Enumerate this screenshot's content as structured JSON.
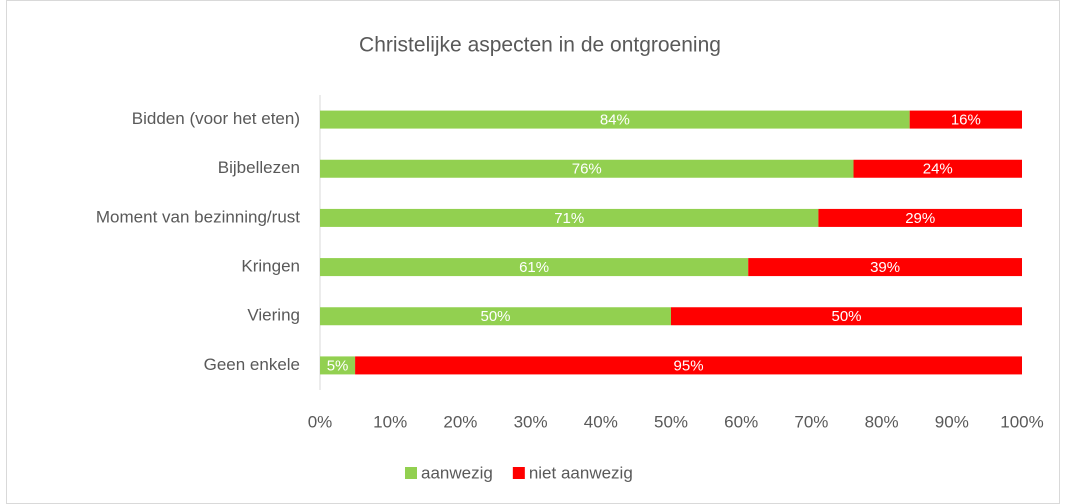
{
  "chart_data": {
    "type": "stacked_barh",
    "title": "Christelijke aspecten in de ontgroening",
    "categories": [
      "Bidden (voor het eten)",
      "Bijbellezen",
      "Moment van bezinning/rust",
      "Kringen",
      "Viering",
      "Geen enkele"
    ],
    "series": [
      {
        "name": "aanwezig",
        "color": "#92d050",
        "values": [
          84,
          76,
          71,
          61,
          50,
          5
        ],
        "value_labels": [
          "84%",
          "76%",
          "71%",
          "61%",
          "50%",
          "5%"
        ]
      },
      {
        "name": "niet aanwezig",
        "color": "#ff0000",
        "values": [
          16,
          24,
          29,
          39,
          50,
          95
        ],
        "value_labels": [
          "16%",
          "24%",
          "29%",
          "39%",
          "50%",
          "95%"
        ]
      }
    ],
    "xlim": [
      0,
      100
    ],
    "xticks": [
      {
        "value": 0,
        "label": "0%"
      },
      {
        "value": 10,
        "label": "10%"
      },
      {
        "value": 20,
        "label": "20%"
      },
      {
        "value": 30,
        "label": "30%"
      },
      {
        "value": 40,
        "label": "40%"
      },
      {
        "value": 50,
        "label": "50%"
      },
      {
        "value": 60,
        "label": "60%"
      },
      {
        "value": 70,
        "label": "70%"
      },
      {
        "value": 80,
        "label": "80%"
      },
      {
        "value": 90,
        "label": "90%"
      },
      {
        "value": 100,
        "label": "100%"
      }
    ],
    "legend": "bottom"
  }
}
